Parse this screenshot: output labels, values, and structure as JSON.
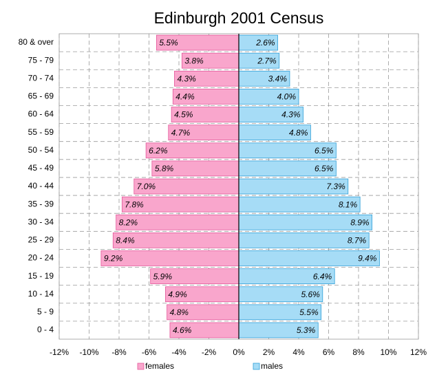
{
  "chart_data": {
    "type": "bar",
    "orientation": "horizontal",
    "title": "Edinburgh 2001 Census",
    "categories": [
      "80 & over",
      "75 - 79",
      "70 - 74",
      "65 - 69",
      "60 - 64",
      "55 - 59",
      "50 - 54",
      "45 - 49",
      "40 - 44",
      "35 - 39",
      "30 - 34",
      "25 - 29",
      "20 - 24",
      "15 - 19",
      "10 - 14",
      "5 - 9",
      "0 - 4"
    ],
    "series": [
      {
        "name": "females",
        "color": "#f9a6cc",
        "label_color": "#8b1538",
        "values": [
          -5.5,
          -3.8,
          -4.3,
          -4.4,
          -4.5,
          -4.7,
          -6.2,
          -5.8,
          -7.0,
          -7.8,
          -8.2,
          -8.4,
          -9.2,
          -5.9,
          -4.9,
          -4.8,
          -4.6
        ],
        "value_labels": [
          "5.5%",
          "3.8%",
          "4.3%",
          "4.4%",
          "4.5%",
          "4.7%",
          "6.2%",
          "5.8%",
          "7.0%",
          "7.8%",
          "8.2%",
          "8.4%",
          "9.2%",
          "5.9%",
          "4.9%",
          "4.8%",
          "4.6%"
        ]
      },
      {
        "name": "males",
        "color": "#a6dcf6",
        "label_color": "#1a237e",
        "values": [
          2.6,
          2.7,
          3.4,
          4.0,
          4.3,
          4.8,
          6.5,
          6.5,
          7.3,
          8.1,
          8.9,
          8.7,
          9.4,
          6.4,
          5.6,
          5.5,
          5.3
        ],
        "value_labels": [
          "2.6%",
          "2.7%",
          "3.4%",
          "4.0%",
          "4.3%",
          "4.8%",
          "6.5%",
          "6.5%",
          "7.3%",
          "8.1%",
          "8.9%",
          "8.7%",
          "9.4%",
          "6.4%",
          "5.6%",
          "5.5%",
          "5.3%"
        ]
      }
    ],
    "xlim": [
      -12,
      12
    ],
    "xticks": [
      {
        "value": -12,
        "label": "-12%"
      },
      {
        "value": -10,
        "label": "-10%"
      },
      {
        "value": -8,
        "label": "-8%"
      },
      {
        "value": -6,
        "label": "-6%"
      },
      {
        "value": -4,
        "label": "-4%"
      },
      {
        "value": -2,
        "label": "-2%"
      },
      {
        "value": 0,
        "label": "0%"
      },
      {
        "value": 2,
        "label": "2%"
      },
      {
        "value": 4,
        "label": "4%"
      },
      {
        "value": 6,
        "label": "6%"
      },
      {
        "value": 8,
        "label": "8%"
      },
      {
        "value": 10,
        "label": "10%"
      },
      {
        "value": 12,
        "label": "12%"
      }
    ],
    "grid": true,
    "legend": "bottom"
  }
}
